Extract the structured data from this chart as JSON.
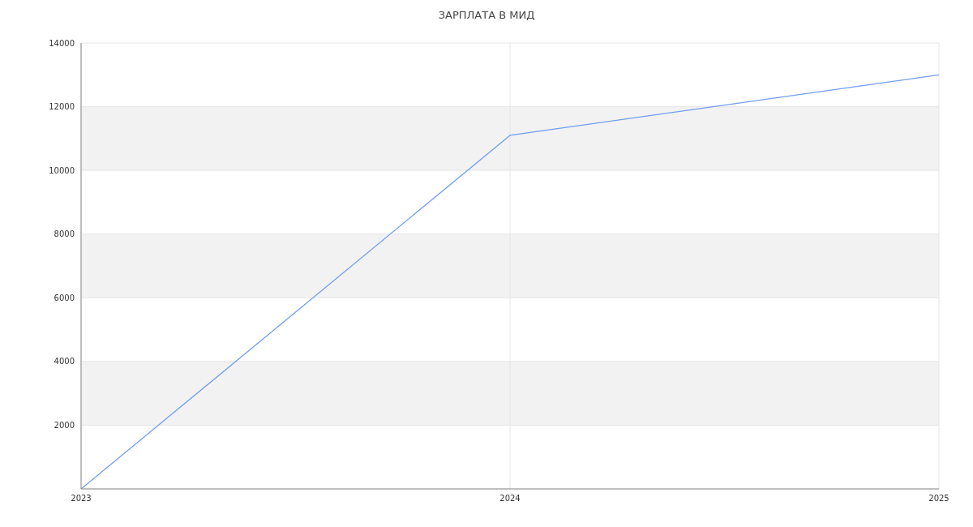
{
  "chart_data": {
    "type": "line",
    "title": "ЗАРПЛАТА В МИД",
    "x": [
      2023,
      2024,
      2025
    ],
    "series": [
      {
        "color": "#6f9cf0",
        "values": [
          0,
          11100,
          13000
        ]
      }
    ],
    "xlim": [
      2023,
      2025
    ],
    "xticks": [
      2023,
      2024,
      2025
    ],
    "ylim": [
      0,
      14000
    ],
    "yticks": [
      {
        "value": 0,
        "label": null
      },
      2000,
      4000,
      6000,
      8000,
      10000,
      12000,
      14000
    ],
    "grid": true,
    "marker": "none",
    "line_style": "solid",
    "legend": false
  }
}
